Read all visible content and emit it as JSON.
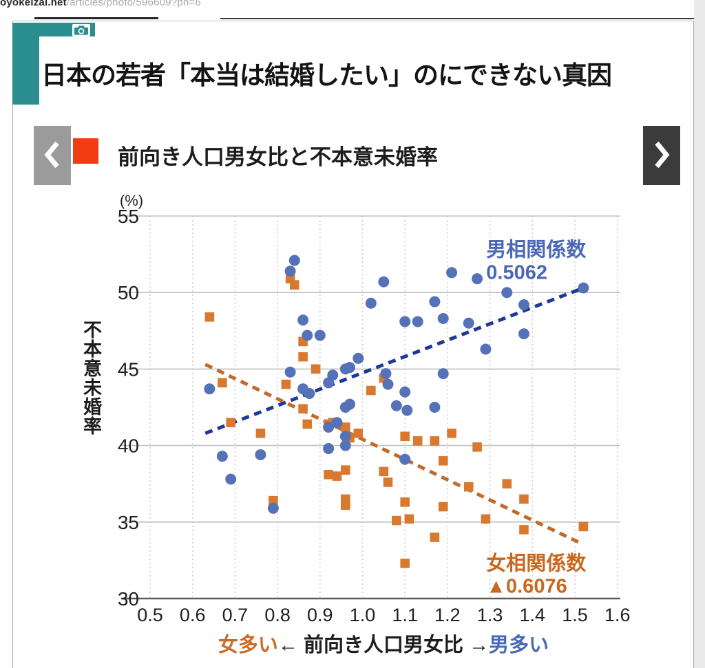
{
  "browser": {
    "url_domain": "oyokeizai.net",
    "url_path": "/articles/photo/596609?ph=6"
  },
  "header": {
    "title": "日本の若者「本当は結婚したい」のにできない真因"
  },
  "carousel": {
    "prev": "previous photo",
    "next": "next photo"
  },
  "chart_header": {
    "bullet_color": "#f23c12",
    "title": "前向き人口男女比と不本意未婚率"
  },
  "chart_data": {
    "type": "scatter",
    "title": "前向き人口男女比と不本意未婚率",
    "unit_label": "(%)",
    "ylabel": "不本意未婚率",
    "xlabel_parts": {
      "left": "女多い",
      "arrow_left": "←",
      "center": " 前向き人口男女比 ",
      "arrow_right": "→",
      "right": "男多い"
    },
    "xlabel_colors": {
      "left": "#c96d26",
      "center": "#1d1d1d",
      "right": "#4a68b5"
    },
    "ylim": [
      30,
      55
    ],
    "yticks": [
      55,
      50,
      45,
      40,
      35,
      30
    ],
    "xticks": [
      0.5,
      0.6,
      0.7,
      0.8,
      0.9,
      1.0,
      1.1,
      1.2,
      1.3,
      1.4,
      1.5,
      1.6
    ],
    "grid": true,
    "series": [
      {
        "name": "男",
        "marker": "circle",
        "color": "#5571b7",
        "trend": {
          "x1": 0.63,
          "y1": 40.8,
          "x2": 1.52,
          "y2": 50.3,
          "color": "#1a3a96"
        },
        "annotation": {
          "lines": [
            "男相関係数",
            "0.5062"
          ],
          "color": "#4a68b5",
          "x": 1.4,
          "y_top": 53.5
        },
        "points": [
          [
            0.84,
            52.1
          ],
          [
            0.83,
            51.4
          ],
          [
            0.86,
            48.2
          ],
          [
            0.87,
            47.2
          ],
          [
            0.9,
            47.2
          ],
          [
            0.99,
            45.7
          ],
          [
            0.97,
            45.1
          ],
          [
            0.96,
            45.0
          ],
          [
            0.83,
            44.8
          ],
          [
            0.93,
            44.6
          ],
          [
            0.92,
            44.1
          ],
          [
            0.64,
            43.7
          ],
          [
            0.86,
            43.7
          ],
          [
            0.875,
            43.4
          ],
          [
            0.96,
            42.5
          ],
          [
            0.97,
            42.7
          ],
          [
            1.21,
            51.3
          ],
          [
            1.27,
            50.9
          ],
          [
            1.05,
            50.7
          ],
          [
            1.52,
            50.3
          ],
          [
            1.34,
            50.0
          ],
          [
            1.02,
            49.3
          ],
          [
            1.17,
            49.4
          ],
          [
            1.38,
            49.2
          ],
          [
            1.1,
            48.1
          ],
          [
            1.13,
            48.1
          ],
          [
            1.19,
            48.3
          ],
          [
            1.25,
            48.0
          ],
          [
            1.38,
            47.3
          ],
          [
            1.29,
            46.3
          ],
          [
            1.055,
            44.7
          ],
          [
            1.19,
            44.7
          ],
          [
            1.06,
            44.0
          ],
          [
            1.1,
            43.5
          ],
          [
            1.08,
            42.6
          ],
          [
            1.105,
            42.3
          ],
          [
            1.17,
            42.5
          ],
          [
            0.67,
            39.3
          ],
          [
            0.76,
            39.4
          ],
          [
            0.69,
            37.8
          ],
          [
            0.79,
            35.9
          ],
          [
            0.92,
            39.8
          ],
          [
            0.96,
            40.0
          ],
          [
            0.92,
            41.2
          ],
          [
            0.94,
            41.5
          ],
          [
            0.96,
            40.6
          ],
          [
            1.1,
            39.1
          ]
        ]
      },
      {
        "name": "女",
        "marker": "square",
        "color": "#d8792f",
        "trend": {
          "x1": 0.63,
          "y1": 45.3,
          "x2": 1.515,
          "y2": 33.6,
          "color": "#c26a28"
        },
        "annotation": {
          "lines": [
            "女相関係数",
            "▲0.6076"
          ],
          "color": "#c8681f",
          "x": 1.4,
          "y_top": 33.0
        },
        "points": [
          [
            0.83,
            50.9
          ],
          [
            0.84,
            50.5
          ],
          [
            0.64,
            48.4
          ],
          [
            0.86,
            46.8
          ],
          [
            0.86,
            45.8
          ],
          [
            0.89,
            45.0
          ],
          [
            0.67,
            44.1
          ],
          [
            0.82,
            44.0
          ],
          [
            0.86,
            42.4
          ],
          [
            1.05,
            44.4
          ],
          [
            1.02,
            43.6
          ],
          [
            0.69,
            41.5
          ],
          [
            0.76,
            40.8
          ],
          [
            0.79,
            36.4
          ],
          [
            0.87,
            41.4
          ],
          [
            0.92,
            41.4
          ],
          [
            0.93,
            41.5
          ],
          [
            0.96,
            41.2
          ],
          [
            0.97,
            40.5
          ],
          [
            0.99,
            40.8
          ],
          [
            0.92,
            38.1
          ],
          [
            0.94,
            38.0
          ],
          [
            0.96,
            38.4
          ],
          [
            0.96,
            36.5
          ],
          [
            0.96,
            36.1
          ],
          [
            1.1,
            40.6
          ],
          [
            1.13,
            40.3
          ],
          [
            1.17,
            40.3
          ],
          [
            1.21,
            40.8
          ],
          [
            1.27,
            39.9
          ],
          [
            1.19,
            39.0
          ],
          [
            1.05,
            38.3
          ],
          [
            1.06,
            37.6
          ],
          [
            1.25,
            37.3
          ],
          [
            1.34,
            37.5
          ],
          [
            1.1,
            36.3
          ],
          [
            1.19,
            36.0
          ],
          [
            1.38,
            36.5
          ],
          [
            1.08,
            35.1
          ],
          [
            1.11,
            35.2
          ],
          [
            1.29,
            35.2
          ],
          [
            1.38,
            34.5
          ],
          [
            1.52,
            34.7
          ],
          [
            1.17,
            34.0
          ],
          [
            1.1,
            32.3
          ]
        ]
      }
    ]
  },
  "colors": {
    "teal": "#2a8e8e",
    "grid_solid": "#c0c0c0",
    "grid_dotted": "#cfcfcf",
    "axis": "#5a5a5a",
    "tick_text": "#1f1f1f"
  }
}
